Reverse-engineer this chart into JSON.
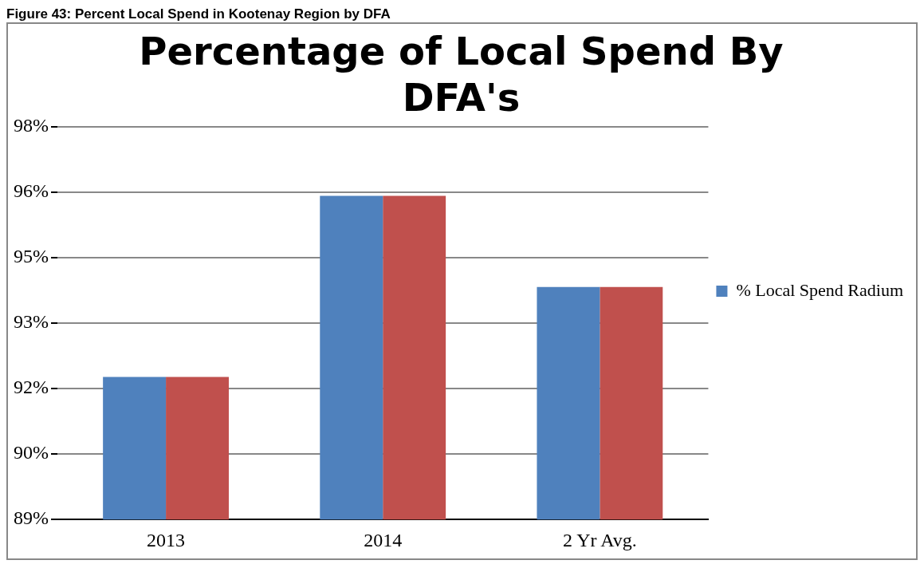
{
  "chart_data": {
    "type": "bar",
    "title": "Percentage of Local Spend By DFA's",
    "annotations": [
      "Figure 43: Percent Local Spend in Kootenay Region by DFA"
    ],
    "categories": [
      "2013",
      "2014",
      "2 Yr Avg."
    ],
    "series": [
      {
        "name": "% Local Spend Radium",
        "color": "#4f81bd",
        "values": [
          92.27,
          96.42,
          94.33
        ]
      },
      {
        "color": "#c0504d",
        "values": [
          92.27,
          96.42,
          94.33
        ]
      }
    ],
    "ylim": [
      89,
      98
    ],
    "yticks": [
      {
        "value": 89,
        "label": "89%"
      },
      {
        "value": 90.5,
        "label": "90%"
      },
      {
        "value": 92,
        "label": "92%"
      },
      {
        "value": 93.5,
        "label": "93%"
      },
      {
        "value": 95,
        "label": "95%"
      },
      {
        "value": 96.5,
        "label": "96%"
      },
      {
        "value": 98,
        "label": "98%"
      }
    ],
    "grid": "y",
    "legend": "right"
  }
}
